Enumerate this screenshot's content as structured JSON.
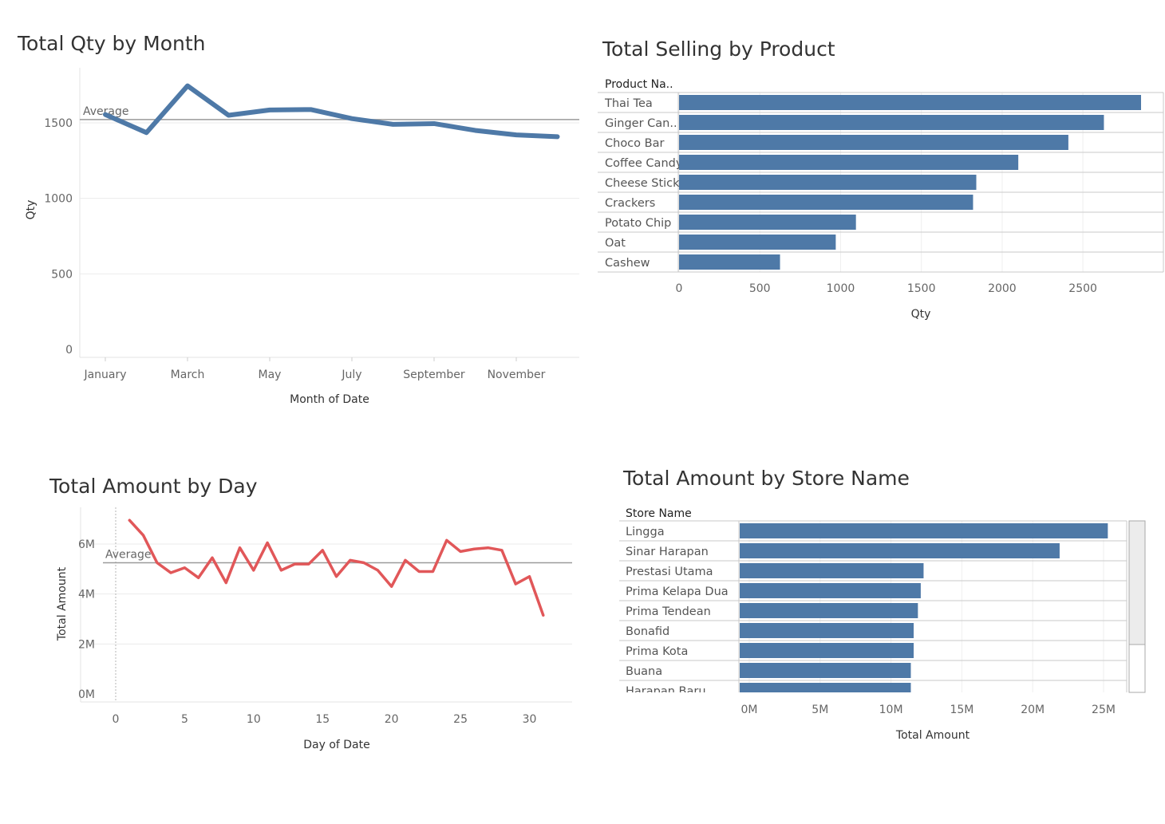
{
  "charts": {
    "qty_by_month": {
      "title": "Total Qty by Month",
      "avg_label": "Average"
    },
    "selling_by_product": {
      "title": "Total Selling by Product",
      "header": "Product Na.."
    },
    "amount_by_day": {
      "title": "Total Amount by Day",
      "avg_label": "Average"
    },
    "amount_by_store": {
      "title": "Total Amount by Store Name",
      "header": "Store Name"
    }
  },
  "colors": {
    "blue": "#4e79a7",
    "red": "#e15759",
    "grid": "#ebebeb",
    "ref_line": "#9a9a9a"
  },
  "chart_data": [
    {
      "id": "qty_by_month",
      "type": "line",
      "title": "Total Qty by Month",
      "xlabel": "Month of Date",
      "ylabel": "Qty",
      "x": [
        "January",
        "February",
        "March",
        "April",
        "May",
        "June",
        "July",
        "August",
        "September",
        "October",
        "November",
        "December"
      ],
      "xtick_labels": [
        "January",
        "March",
        "May",
        "July",
        "September",
        "November"
      ],
      "values": [
        1555,
        1435,
        1745,
        1550,
        1585,
        1588,
        1528,
        1490,
        1495,
        1450,
        1420,
        1408
      ],
      "average": 1522,
      "average_label": "Average",
      "ylim": [
        0,
        1800
      ],
      "yticks": [
        0,
        500,
        1000,
        1500
      ],
      "color": "#4e79a7"
    },
    {
      "id": "selling_by_product",
      "type": "bar",
      "orientation": "horizontal",
      "title": "Total Selling by Product",
      "row_header": "Product Na..",
      "xlabel": "Qty",
      "categories": [
        "Thai Tea",
        "Ginger Can..",
        "Choco Bar",
        "Coffee Candy",
        "Cheese Stick",
        "Crackers",
        "Potato Chip",
        "Oat",
        "Cashew"
      ],
      "values": [
        2860,
        2630,
        2410,
        2100,
        1840,
        1820,
        1095,
        970,
        625
      ],
      "xlim": [
        0,
        3000
      ],
      "xticks": [
        0,
        500,
        1000,
        1500,
        2000,
        2500
      ],
      "color": "#4e79a7"
    },
    {
      "id": "amount_by_day",
      "type": "line",
      "title": "Total Amount by Day",
      "xlabel": "Day of Date",
      "ylabel": "Total Amount",
      "x": [
        1,
        2,
        3,
        4,
        5,
        6,
        7,
        8,
        9,
        10,
        11,
        12,
        13,
        14,
        15,
        16,
        17,
        18,
        19,
        20,
        21,
        22,
        23,
        24,
        25,
        26,
        27,
        28,
        29,
        30,
        31
      ],
      "values": [
        6.95,
        6.35,
        5.25,
        4.85,
        5.05,
        4.65,
        5.45,
        4.45,
        5.85,
        4.95,
        6.05,
        4.95,
        5.2,
        5.2,
        5.75,
        4.7,
        5.35,
        5.25,
        4.95,
        4.3,
        5.35,
        4.9,
        4.9,
        6.15,
        5.7,
        5.8,
        5.85,
        5.75,
        4.4,
        4.7,
        3.15
      ],
      "value_unit": "M",
      "average": 5.25,
      "average_label": "Average",
      "ylim": [
        0,
        7.2
      ],
      "yticks": [
        "0M",
        "2M",
        "4M",
        "6M"
      ],
      "xticks": [
        0,
        5,
        10,
        15,
        20,
        25,
        30
      ],
      "color": "#e15759"
    },
    {
      "id": "amount_by_store",
      "type": "bar",
      "orientation": "horizontal",
      "title": "Total Amount by Store Name",
      "row_header": "Store Name",
      "xlabel": "Total Amount",
      "categories": [
        "Lingga",
        "Sinar Harapan",
        "Prestasi Utama",
        "Prima Kelapa Dua",
        "Prima Tendean",
        "Bonafid",
        "Prima Kota",
        "Buana",
        "Harapan Baru"
      ],
      "values": [
        25.3,
        21.9,
        12.3,
        12.1,
        11.9,
        11.6,
        11.6,
        11.4,
        11.4
      ],
      "value_unit": "M",
      "xlim": [
        -0.7,
        26.8
      ],
      "xticks": [
        "0M",
        "5M",
        "10M",
        "15M",
        "20M",
        "25M"
      ],
      "color": "#4e79a7"
    }
  ]
}
